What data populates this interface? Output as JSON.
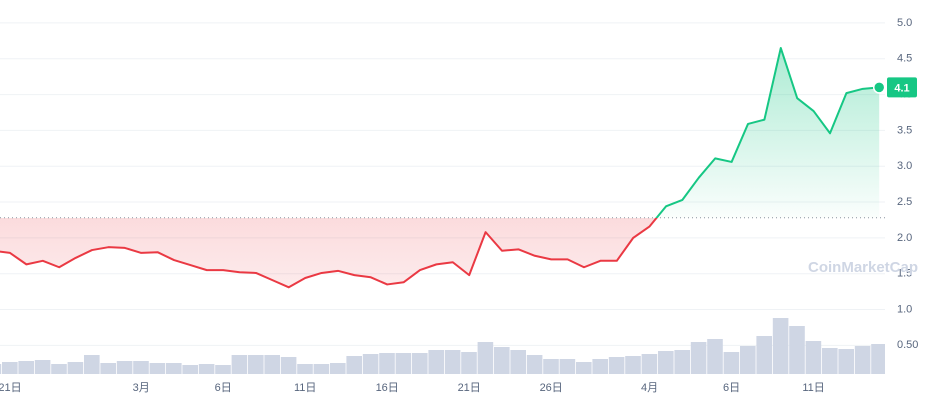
{
  "chart_data": {
    "type": "line",
    "watermark": "CoinMarketCap",
    "categories": [
      null,
      "21日",
      null,
      null,
      null,
      null,
      null,
      null,
      null,
      "3月",
      null,
      null,
      null,
      null,
      "6日",
      null,
      null,
      null,
      null,
      "11日",
      null,
      null,
      null,
      null,
      "16日",
      null,
      null,
      null,
      null,
      "21日",
      null,
      null,
      null,
      null,
      "26日",
      null,
      null,
      null,
      null,
      null,
      "4月",
      null,
      null,
      null,
      null,
      "6日",
      null,
      null,
      null,
      null,
      "11日",
      null,
      null,
      null,
      null
    ],
    "values": [
      1.82,
      1.79,
      1.63,
      1.68,
      1.59,
      1.72,
      1.83,
      1.87,
      1.86,
      1.79,
      1.8,
      1.69,
      1.62,
      1.55,
      1.55,
      1.52,
      1.51,
      1.41,
      1.31,
      1.44,
      1.51,
      1.54,
      1.48,
      1.45,
      1.35,
      1.38,
      1.55,
      1.63,
      1.66,
      1.48,
      2.08,
      1.82,
      1.84,
      1.75,
      1.7,
      1.7,
      1.59,
      1.68,
      1.68,
      2.0,
      2.16,
      2.44,
      2.53,
      2.84,
      3.11,
      3.06,
      3.59,
      3.65,
      4.65,
      3.95,
      3.77,
      3.46,
      4.02,
      4.08,
      4.1
    ],
    "volume": [
      10,
      12,
      13,
      14,
      10,
      12,
      19,
      11,
      13,
      13,
      11,
      11,
      9,
      10,
      9,
      19,
      19,
      19,
      17,
      10,
      10,
      11,
      18,
      20,
      21,
      21,
      21,
      24,
      24,
      22,
      32,
      27,
      24,
      19,
      15,
      15,
      12,
      15,
      17,
      18,
      20,
      23,
      24,
      32,
      35,
      22,
      28,
      38,
      56,
      48,
      33,
      26,
      25,
      28,
      30
    ],
    "volume_lim": [
      0,
      374
    ],
    "baseline": 2.28,
    "up_color": "#16c784",
    "down_color": "#ea3943",
    "volume_color": "#cfd6e4",
    "ylim": [
      0.1,
      5.32
    ],
    "yticks": [
      {
        "value": 5,
        "label": "5.0"
      },
      {
        "value": 4.5,
        "label": "4.5"
      },
      {
        "value": 4,
        "label": "4.0"
      },
      {
        "value": 3.5,
        "label": "3.5"
      },
      {
        "value": 3,
        "label": "3.0"
      },
      {
        "value": 2.5,
        "label": "2.5"
      },
      {
        "value": 2,
        "label": "2.0"
      },
      {
        "value": 1.5,
        "label": "1.5"
      },
      {
        "value": 1,
        "label": "1.0"
      },
      {
        "value": 0.5,
        "label": "0.50"
      }
    ],
    "grid": true
  }
}
